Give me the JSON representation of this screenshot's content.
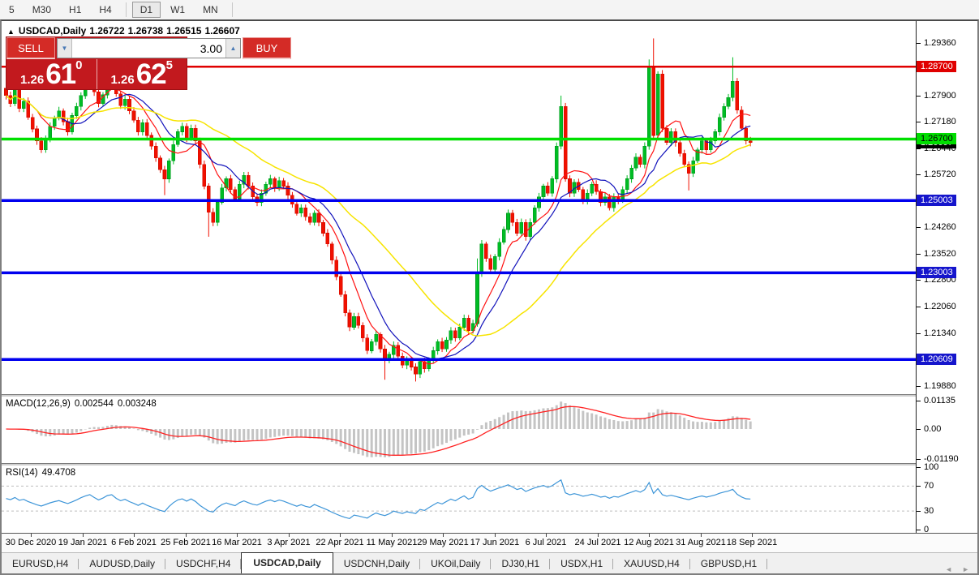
{
  "toolbar": {
    "items": [
      {
        "type": "button",
        "label": "5",
        "active": false
      },
      {
        "type": "button",
        "label": "M30",
        "active": false
      },
      {
        "type": "button",
        "label": "H1",
        "active": false
      },
      {
        "type": "button",
        "label": "H4",
        "active": false
      },
      {
        "type": "separator"
      },
      {
        "type": "button",
        "label": "D1",
        "active": true
      },
      {
        "type": "button",
        "label": "W1",
        "active": false
      },
      {
        "type": "button",
        "label": "MN",
        "active": false
      },
      {
        "type": "separator"
      }
    ]
  },
  "header": {
    "expander_icon": "▲",
    "symbol": "USDCAD,Daily",
    "open": "1.26722",
    "high": "1.26738",
    "low": "1.26515",
    "close": "1.26607"
  },
  "trade_panel": {
    "sell_label": "SELL",
    "buy_label": "BUY",
    "volume": "3.00",
    "volume_down_icon": "▼",
    "volume_up_icon": "▲",
    "sell_price": {
      "prefix": "1.26",
      "big": "61",
      "pip": "0"
    },
    "buy_price": {
      "prefix": "1.26",
      "big": "62",
      "pip": "5"
    },
    "panel_color": "#c2191e",
    "button_color": "#d42b26"
  },
  "chart_data": {
    "type": "candlestick",
    "symbol": "USDCAD",
    "timeframe": "Daily",
    "up_color": "#00bc24",
    "up_border": "#009a1d",
    "down_color": "#f01000",
    "down_border": "#d40d00",
    "price_range": {
      "max": 1.2996,
      "min": 1.1965
    },
    "first_open": 1.281,
    "closes": [
      1.279,
      1.2768,
      1.2812,
      1.2755,
      1.2775,
      1.273,
      1.2698,
      1.2665,
      1.264,
      1.2672,
      1.2705,
      1.2728,
      1.2748,
      1.2718,
      1.269,
      1.2735,
      1.276,
      1.279,
      1.2815,
      1.2835,
      1.28,
      1.2768,
      1.2792,
      1.2828,
      1.284,
      1.2795,
      1.2762,
      1.278,
      1.2748,
      1.2722,
      1.269,
      1.2715,
      1.268,
      1.265,
      1.2618,
      1.2585,
      1.256,
      1.261,
      1.2655,
      1.269,
      1.2705,
      1.2672,
      1.27,
      1.2665,
      1.26,
      1.254,
      1.2468,
      1.244,
      1.2495,
      1.2535,
      1.256,
      1.253,
      1.2505,
      1.2545,
      1.257,
      1.254,
      1.251,
      1.2495,
      1.252,
      1.2545,
      1.256,
      1.2535,
      1.2555,
      1.254,
      1.2515,
      1.249,
      1.2465,
      1.248,
      1.2455,
      1.244,
      1.2465,
      1.244,
      1.241,
      1.238,
      1.2335,
      1.229,
      1.224,
      1.219,
      1.215,
      1.218,
      1.2155,
      1.212,
      1.2085,
      1.211,
      1.213,
      1.209,
      1.206,
      1.2075,
      1.21,
      1.207,
      1.2045,
      1.206,
      1.204,
      1.202,
      1.2055,
      1.2035,
      1.206,
      1.2085,
      1.211,
      1.209,
      1.2115,
      1.214,
      1.212,
      1.215,
      1.2175,
      1.214,
      1.216,
      1.23,
      1.238,
      1.234,
      1.231,
      1.2345,
      1.2385,
      1.242,
      1.2465,
      1.244,
      1.241,
      1.244,
      1.24,
      1.244,
      1.248,
      1.251,
      1.254,
      1.252,
      1.256,
      1.265,
      1.276,
      1.256,
      1.252,
      1.255,
      1.253,
      1.25,
      1.252,
      1.2545,
      1.2525,
      1.2495,
      1.251,
      1.248,
      1.251,
      1.25,
      1.253,
      1.256,
      1.259,
      1.262,
      1.26,
      1.265,
      1.287,
      1.268,
      1.285,
      1.27,
      1.266,
      1.269,
      1.266,
      1.263,
      1.26,
      1.2575,
      1.261,
      1.264,
      1.2665,
      1.264,
      1.2665,
      1.269,
      1.273,
      1.276,
      1.2785,
      1.283,
      1.275,
      1.27,
      1.2665,
      1.26607
    ],
    "wick_overrides": {
      "36": {
        "l": 1.2515
      },
      "46": {
        "l": 1.24
      },
      "86": {
        "l": 1.2005
      },
      "93": {
        "l": 1.2
      },
      "107": {
        "h": 1.234
      },
      "126": {
        "h": 1.279
      },
      "146": {
        "h": 1.289
      },
      "147": {
        "h": 1.2948
      },
      "155": {
        "l": 1.2528
      },
      "165": {
        "h": 1.2896
      }
    },
    "moving_averages": [
      {
        "period": 8,
        "color": "#ff1111"
      },
      {
        "period": 13,
        "color": "#1111bb"
      },
      {
        "period": 34,
        "color": "#f7e400"
      }
    ],
    "h_lines": [
      {
        "price": 1.287,
        "label": "1.28700",
        "color": "#e00000",
        "width": 2.5,
        "label_bg": "#e00000",
        "label_fg": "#ffffff"
      },
      {
        "price": 1.267,
        "label": "1.26700",
        "color": "#00e000",
        "width": 3.5,
        "label_bg": "#00dd00",
        "label_fg": "#000000"
      },
      {
        "price": 1.25003,
        "label": "1.25003",
        "color": "#0000ee",
        "width": 3.5,
        "label_bg": "#1515cc",
        "label_fg": "#ffffff"
      },
      {
        "price": 1.23003,
        "label": "1.23003",
        "color": "#0000ee",
        "width": 3.5,
        "label_bg": "#1515cc",
        "label_fg": "#ffffff"
      },
      {
        "price": 1.20609,
        "label": "1.20609",
        "color": "#0000ee",
        "width": 3.5,
        "label_bg": "#1515cc",
        "label_fg": "#ffffff"
      }
    ],
    "current_price": {
      "label": "1.26607",
      "price": 1.26607,
      "bg": "#000000",
      "fg": "#ffffff"
    },
    "y_ticks": [
      "1.29360",
      "1.27900",
      "1.27180",
      "1.26440",
      "1.25720",
      "1.24260",
      "1.23520",
      "1.22800",
      "1.22060",
      "1.21340",
      "1.19880"
    ],
    "x_labels": [
      "30 Dec 2020",
      "19 Jan 2021",
      "6 Feb 2021",
      "25 Feb 2021",
      "16 Mar 2021",
      "3 Apr 2021",
      "22 Apr 2021",
      "11 May 2021",
      "29 May 2021",
      "17 Jun 2021",
      "6 Jul 2021",
      "24 Jul 2021",
      "12 Aug 2021",
      "31 Aug 2021",
      "18 Sep 2021"
    ],
    "macd": {
      "label": "MACD(12,26,9)",
      "value_main": "0.002544",
      "value_signal": "0.003248",
      "fast": 12,
      "slow": 26,
      "signal": 9,
      "ticks": [
        "0.01135",
        "0.00",
        "-0.01190"
      ],
      "range": {
        "max": 0.01297,
        "min": -0.01362
      },
      "histogram_color": "#c4c4c4",
      "signal_color": "#ff2222"
    },
    "rsi": {
      "label": "RSI(14)",
      "value": "49.4708",
      "period": 14,
      "ticks": [
        "100",
        "70",
        "30",
        "0"
      ],
      "levels": [
        70,
        30
      ],
      "range": {
        "max": 103,
        "min": -5
      },
      "line_color": "#3d95d8",
      "level_color": "#bdbdbd"
    }
  },
  "tabs": {
    "items": [
      {
        "label": "EURUSD,H4",
        "active": false
      },
      {
        "label": "AUDUSD,Daily",
        "active": false
      },
      {
        "label": "USDCHF,H4",
        "active": false
      },
      {
        "label": "USDCAD,Daily",
        "active": true
      },
      {
        "label": "USDCNH,Daily",
        "active": false
      },
      {
        "label": "UKOil,Daily",
        "active": false
      },
      {
        "label": "DJ30,H1",
        "active": false
      },
      {
        "label": "USDX,H1",
        "active": false
      },
      {
        "label": "XAUUSD,H4",
        "active": false
      },
      {
        "label": "GBPUSD,H1",
        "active": false
      }
    ],
    "scroll_left_icon": "◄",
    "scroll_right_icon": "►"
  }
}
